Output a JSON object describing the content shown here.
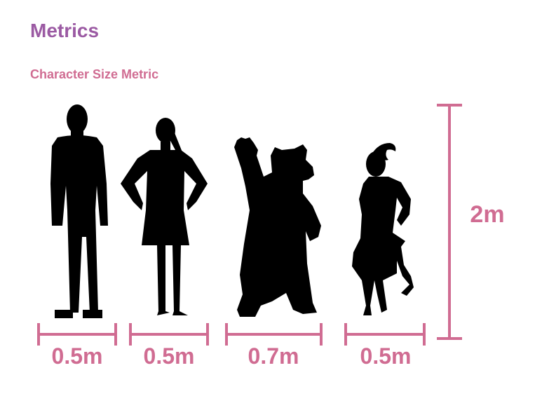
{
  "page": {
    "title": "Metrics",
    "subtitle": "Character Size Metric"
  },
  "colors": {
    "title": "#9b5aa3",
    "subtitle": "#d06c92",
    "measure": "#d06c92",
    "silhouette": "#000000"
  },
  "characters": [
    {
      "name": "human-male",
      "width_label": "0.5m"
    },
    {
      "name": "human-female",
      "width_label": "0.5m"
    },
    {
      "name": "bear",
      "width_label": "0.7m"
    },
    {
      "name": "faun",
      "width_label": "0.5m"
    }
  ],
  "height_scale": {
    "label": "2m"
  }
}
